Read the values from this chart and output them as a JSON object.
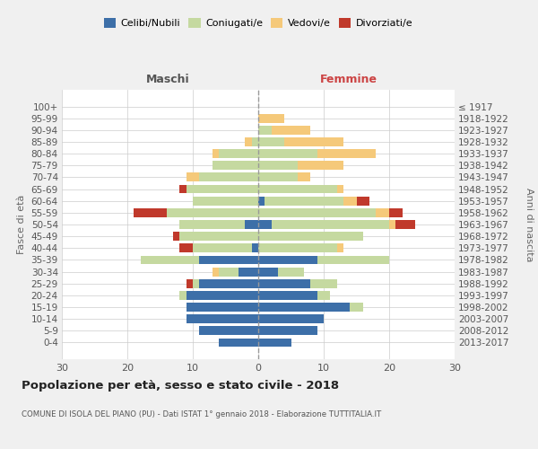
{
  "age_groups": [
    "100+",
    "95-99",
    "90-94",
    "85-89",
    "80-84",
    "75-79",
    "70-74",
    "65-69",
    "60-64",
    "55-59",
    "50-54",
    "45-49",
    "40-44",
    "35-39",
    "30-34",
    "25-29",
    "20-24",
    "15-19",
    "10-14",
    "5-9",
    "0-4"
  ],
  "birth_years": [
    "≤ 1917",
    "1918-1922",
    "1923-1927",
    "1928-1932",
    "1933-1937",
    "1938-1942",
    "1943-1947",
    "1948-1952",
    "1953-1957",
    "1958-1962",
    "1963-1967",
    "1968-1972",
    "1973-1977",
    "1978-1982",
    "1983-1987",
    "1988-1992",
    "1993-1997",
    "1998-2002",
    "2003-2007",
    "2008-2012",
    "2013-2017"
  ],
  "male": {
    "celibi": [
      0,
      0,
      0,
      0,
      0,
      0,
      0,
      0,
      0,
      0,
      2,
      0,
      1,
      9,
      3,
      9,
      11,
      11,
      11,
      9,
      6
    ],
    "coniugati": [
      0,
      0,
      0,
      1,
      6,
      7,
      9,
      11,
      10,
      14,
      10,
      12,
      9,
      9,
      3,
      1,
      1,
      0,
      0,
      0,
      0
    ],
    "vedovi": [
      0,
      0,
      0,
      1,
      1,
      0,
      2,
      0,
      0,
      0,
      0,
      0,
      0,
      0,
      1,
      0,
      0,
      0,
      0,
      0,
      0
    ],
    "divorziati": [
      0,
      0,
      0,
      0,
      0,
      0,
      0,
      1,
      0,
      5,
      0,
      1,
      2,
      0,
      0,
      1,
      0,
      0,
      0,
      0,
      0
    ]
  },
  "female": {
    "nubili": [
      0,
      0,
      0,
      0,
      0,
      0,
      0,
      0,
      1,
      0,
      2,
      0,
      0,
      9,
      3,
      8,
      9,
      14,
      10,
      9,
      5
    ],
    "coniugate": [
      0,
      0,
      2,
      4,
      9,
      6,
      6,
      12,
      12,
      18,
      18,
      16,
      12,
      11,
      4,
      4,
      2,
      2,
      0,
      0,
      0
    ],
    "vedove": [
      0,
      4,
      6,
      9,
      9,
      7,
      2,
      1,
      2,
      2,
      1,
      0,
      1,
      0,
      0,
      0,
      0,
      0,
      0,
      0,
      0
    ],
    "divorziate": [
      0,
      0,
      0,
      0,
      0,
      0,
      0,
      0,
      2,
      2,
      3,
      0,
      0,
      0,
      0,
      0,
      0,
      0,
      0,
      0,
      0
    ]
  },
  "colors": {
    "celibi": "#3d6fa8",
    "coniugati": "#c5d9a0",
    "vedovi": "#f5c97a",
    "divorziati": "#c0392b"
  },
  "xlim": 30,
  "title": "Popolazione per età, sesso e stato civile - 2018",
  "subtitle": "COMUNE DI ISOLA DEL PIANO (PU) - Dati ISTAT 1° gennaio 2018 - Elaborazione TUTTITALIA.IT",
  "ylabel_left": "Fasce di età",
  "ylabel_right": "Anni di nascita",
  "label_maschi": "Maschi",
  "label_femmine": "Femmine",
  "color_maschi": "#555555",
  "color_femmine": "#cc4444",
  "bg_color": "#f0f0f0",
  "plot_bg_color": "#ffffff"
}
